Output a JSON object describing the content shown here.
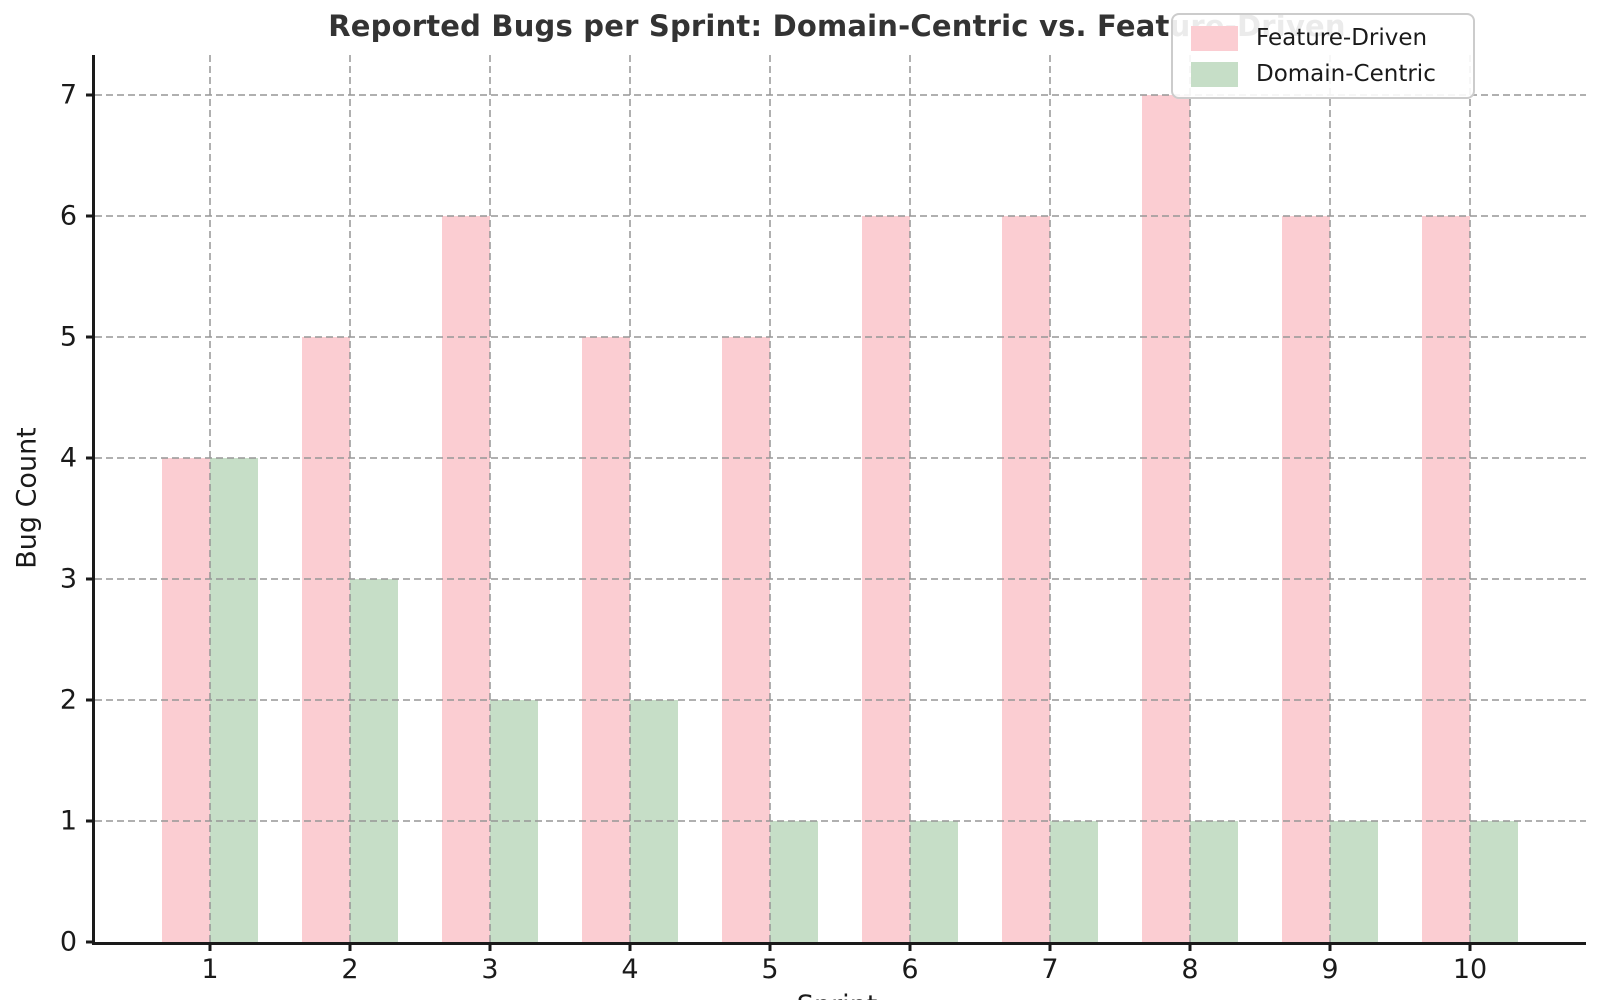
{
  "chart_data": {
    "type": "bar",
    "title": "Reported Bugs per Sprint: Domain-Centric vs. Feature-Driven",
    "xlabel": "Sprint",
    "ylabel": "Bug Count",
    "categories": [
      "1",
      "2",
      "3",
      "4",
      "5",
      "6",
      "7",
      "8",
      "9",
      "10"
    ],
    "series": [
      {
        "name": "Feature-Driven",
        "color": "#fbcdd2",
        "values": [
          4,
          5,
          6,
          5,
          5,
          6,
          6,
          7,
          6,
          6
        ]
      },
      {
        "name": "Domain-Centric",
        "color": "#c6dec7",
        "values": [
          4,
          3,
          2,
          2,
          1,
          1,
          1,
          1,
          1,
          1
        ]
      }
    ],
    "yticks": [
      0,
      1,
      2,
      3,
      4,
      5,
      6,
      7
    ],
    "ylim": [
      0,
      7.33
    ],
    "grid": true,
    "grid_style": "dashed",
    "legend_position": "upper right",
    "title_color": "#333333",
    "axis_color": "#1a1a1a",
    "grid_color": "#969696"
  }
}
